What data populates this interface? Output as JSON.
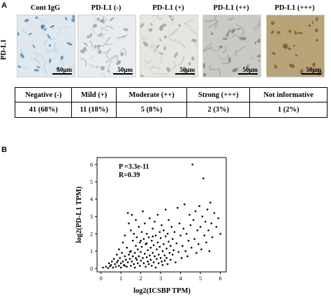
{
  "panel_a": {
    "letter": "A",
    "row_label": "PD-L1",
    "images": [
      {
        "title": "Cont IgG",
        "scale": "50μm",
        "stain": "none",
        "tint": "#dfe8ee"
      },
      {
        "title": "PD-L1 (-)",
        "scale": "50μm",
        "stain": "negative",
        "tint": "#e9ecef"
      },
      {
        "title": "PD-L1 (+)",
        "scale": "50μm",
        "stain": "mild",
        "tint": "#e6e6e0"
      },
      {
        "title": "PD-L1 (++)",
        "scale": "50μm",
        "stain": "moderate",
        "tint": "#c9cac6"
      },
      {
        "title": "PD-L1 (+++)",
        "scale": "50μm",
        "stain": "strong",
        "tint": "#b8a47a"
      }
    ],
    "table": {
      "headers": [
        "Negative (-)",
        "Mild (+)",
        "Moderate (++)",
        "Strong (+++)",
        "Not informative"
      ],
      "values": [
        "41 (68%)",
        "11 (18%)",
        "5 (8%)",
        "2 (3%)",
        "1 (2%)"
      ]
    }
  },
  "panel_b": {
    "letter": "B",
    "chart_data": {
      "type": "scatter",
      "xlabel": "log2(ICSBP TPM)",
      "ylabel": "log2(PD-L1 TPM)",
      "xlim": [
        -0.2,
        6.3
      ],
      "ylim": [
        -0.2,
        6.4
      ],
      "xticks": [
        "0",
        "1",
        "2",
        "3",
        "4",
        "5",
        "6"
      ],
      "yticks": [
        "0",
        "1",
        "2",
        "3",
        "4",
        "5",
        "6"
      ],
      "annotations": [
        "P =3.3e-11",
        "R=0.39"
      ],
      "points": [
        [
          0.1,
          0.05
        ],
        [
          0.25,
          0.1
        ],
        [
          0.35,
          0.02
        ],
        [
          0.4,
          0.3
        ],
        [
          0.45,
          0.12
        ],
        [
          0.5,
          0.2
        ],
        [
          0.55,
          0.4
        ],
        [
          0.6,
          0.05
        ],
        [
          0.65,
          0.55
        ],
        [
          0.7,
          0.25
        ],
        [
          0.75,
          0.1
        ],
        [
          0.8,
          0.35
        ],
        [
          0.8,
          0.8
        ],
        [
          0.85,
          0.45
        ],
        [
          0.9,
          0.15
        ],
        [
          0.9,
          1.1
        ],
        [
          0.95,
          0.6
        ],
        [
          1.0,
          0.3
        ],
        [
          1.0,
          0.05
        ],
        [
          1.05,
          0.9
        ],
        [
          1.1,
          0.4
        ],
        [
          1.1,
          1.5
        ],
        [
          1.15,
          0.2
        ],
        [
          1.2,
          0.7
        ],
        [
          1.2,
          1.9
        ],
        [
          1.25,
          0.5
        ],
        [
          1.3,
          0.1
        ],
        [
          1.3,
          1.2
        ],
        [
          1.35,
          0.35
        ],
        [
          1.35,
          3.2
        ],
        [
          1.4,
          0.8
        ],
        [
          1.4,
          2.6
        ],
        [
          1.45,
          0.55
        ],
        [
          1.5,
          0.15
        ],
        [
          1.5,
          1.0
        ],
        [
          1.5,
          2.2
        ],
        [
          1.55,
          0.4
        ],
        [
          1.55,
          3.1
        ],
        [
          1.6,
          0.7
        ],
        [
          1.6,
          1.6
        ],
        [
          1.65,
          0.25
        ],
        [
          1.65,
          2.0
        ],
        [
          1.7,
          0.9
        ],
        [
          1.7,
          0.05
        ],
        [
          1.75,
          1.3
        ],
        [
          1.75,
          2.8
        ],
        [
          1.8,
          0.5
        ],
        [
          1.8,
          1.8
        ],
        [
          1.85,
          0.3
        ],
        [
          1.85,
          1.1
        ],
        [
          1.9,
          0.7
        ],
        [
          1.9,
          2.4
        ],
        [
          1.95,
          0.15
        ],
        [
          1.95,
          1.5
        ],
        [
          2.0,
          0.95
        ],
        [
          2.0,
          0.45
        ],
        [
          2.05,
          2.1
        ],
        [
          2.05,
          1.25
        ],
        [
          2.1,
          0.6
        ],
        [
          2.1,
          3.3
        ],
        [
          2.15,
          0.3
        ],
        [
          2.15,
          1.7
        ],
        [
          2.2,
          0.85
        ],
        [
          2.2,
          2.6
        ],
        [
          2.25,
          0.1
        ],
        [
          2.25,
          1.4
        ],
        [
          2.3,
          0.65
        ],
        [
          2.3,
          2.0
        ],
        [
          2.35,
          0.4
        ],
        [
          2.35,
          1.05
        ],
        [
          2.4,
          1.8
        ],
        [
          2.4,
          0.25
        ],
        [
          2.45,
          0.75
        ],
        [
          2.45,
          2.9
        ],
        [
          2.5,
          1.2
        ],
        [
          2.5,
          0.5
        ],
        [
          2.55,
          1.6
        ],
        [
          2.55,
          0.15
        ],
        [
          2.6,
          0.9
        ],
        [
          2.6,
          2.3
        ],
        [
          2.65,
          0.35
        ],
        [
          2.65,
          1.35
        ],
        [
          2.7,
          0.7
        ],
        [
          2.7,
          2.7
        ],
        [
          2.75,
          1.9
        ],
        [
          2.75,
          0.05
        ],
        [
          2.8,
          1.1
        ],
        [
          2.8,
          0.55
        ],
        [
          2.85,
          1.5
        ],
        [
          2.85,
          3.1
        ],
        [
          2.9,
          0.8
        ],
        [
          2.9,
          0.3
        ],
        [
          2.95,
          2.1
        ],
        [
          2.95,
          1.25
        ],
        [
          3.0,
          0.6
        ],
        [
          3.0,
          1.75
        ],
        [
          3.05,
          0.4
        ],
        [
          3.05,
          2.5
        ],
        [
          3.1,
          1.0
        ],
        [
          3.1,
          0.2
        ],
        [
          3.15,
          1.4
        ],
        [
          3.15,
          2.2
        ],
        [
          3.2,
          0.75
        ],
        [
          3.2,
          0.45
        ],
        [
          3.25,
          1.85
        ],
        [
          3.25,
          3.4
        ],
        [
          3.3,
          1.15
        ],
        [
          3.3,
          0.6
        ],
        [
          3.35,
          2.0
        ],
        [
          3.35,
          0.25
        ],
        [
          3.4,
          1.55
        ],
        [
          3.4,
          2.8
        ],
        [
          3.45,
          0.9
        ],
        [
          3.5,
          1.3
        ],
        [
          3.5,
          0.5
        ],
        [
          3.55,
          2.4
        ],
        [
          3.6,
          1.7
        ],
        [
          3.6,
          0.8
        ],
        [
          3.65,
          1.05
        ],
        [
          3.7,
          2.1
        ],
        [
          3.75,
          0.35
        ],
        [
          3.8,
          1.45
        ],
        [
          3.85,
          3.5
        ],
        [
          3.9,
          0.95
        ],
        [
          3.95,
          2.6
        ],
        [
          4.0,
          1.9
        ],
        [
          4.05,
          0.6
        ],
        [
          4.1,
          1.3
        ],
        [
          4.15,
          2.3
        ],
        [
          4.2,
          3.7
        ],
        [
          4.25,
          1.0
        ],
        [
          4.3,
          2.0
        ],
        [
          4.35,
          0.7
        ],
        [
          4.4,
          1.6
        ],
        [
          4.45,
          3.1
        ],
        [
          4.5,
          2.5
        ],
        [
          4.55,
          1.2
        ],
        [
          4.6,
          6.0
        ],
        [
          4.65,
          2.8
        ],
        [
          4.7,
          1.7
        ],
        [
          4.75,
          3.3
        ],
        [
          4.8,
          0.9
        ],
        [
          4.85,
          2.2
        ],
        [
          4.9,
          1.4
        ],
        [
          4.95,
          3.6
        ],
        [
          5.0,
          2.4
        ],
        [
          5.05,
          1.1
        ],
        [
          5.1,
          3.0
        ],
        [
          5.15,
          5.2
        ],
        [
          5.2,
          1.9
        ],
        [
          5.25,
          2.7
        ],
        [
          5.3,
          1.5
        ],
        [
          5.35,
          3.4
        ],
        [
          5.4,
          2.2
        ],
        [
          5.45,
          1.0
        ],
        [
          5.5,
          3.8
        ],
        [
          5.55,
          2.6
        ],
        [
          5.6,
          1.8
        ],
        [
          5.7,
          3.2
        ],
        [
          5.8,
          2.4
        ],
        [
          5.9,
          2.9
        ],
        [
          6.0,
          2.0
        ],
        [
          2.3,
          1.45
        ],
        [
          1.75,
          0.6
        ],
        [
          2.0,
          1.6
        ],
        [
          2.6,
          1.85
        ],
        [
          1.2,
          0.15
        ],
        [
          1.45,
          0.95
        ]
      ]
    }
  }
}
